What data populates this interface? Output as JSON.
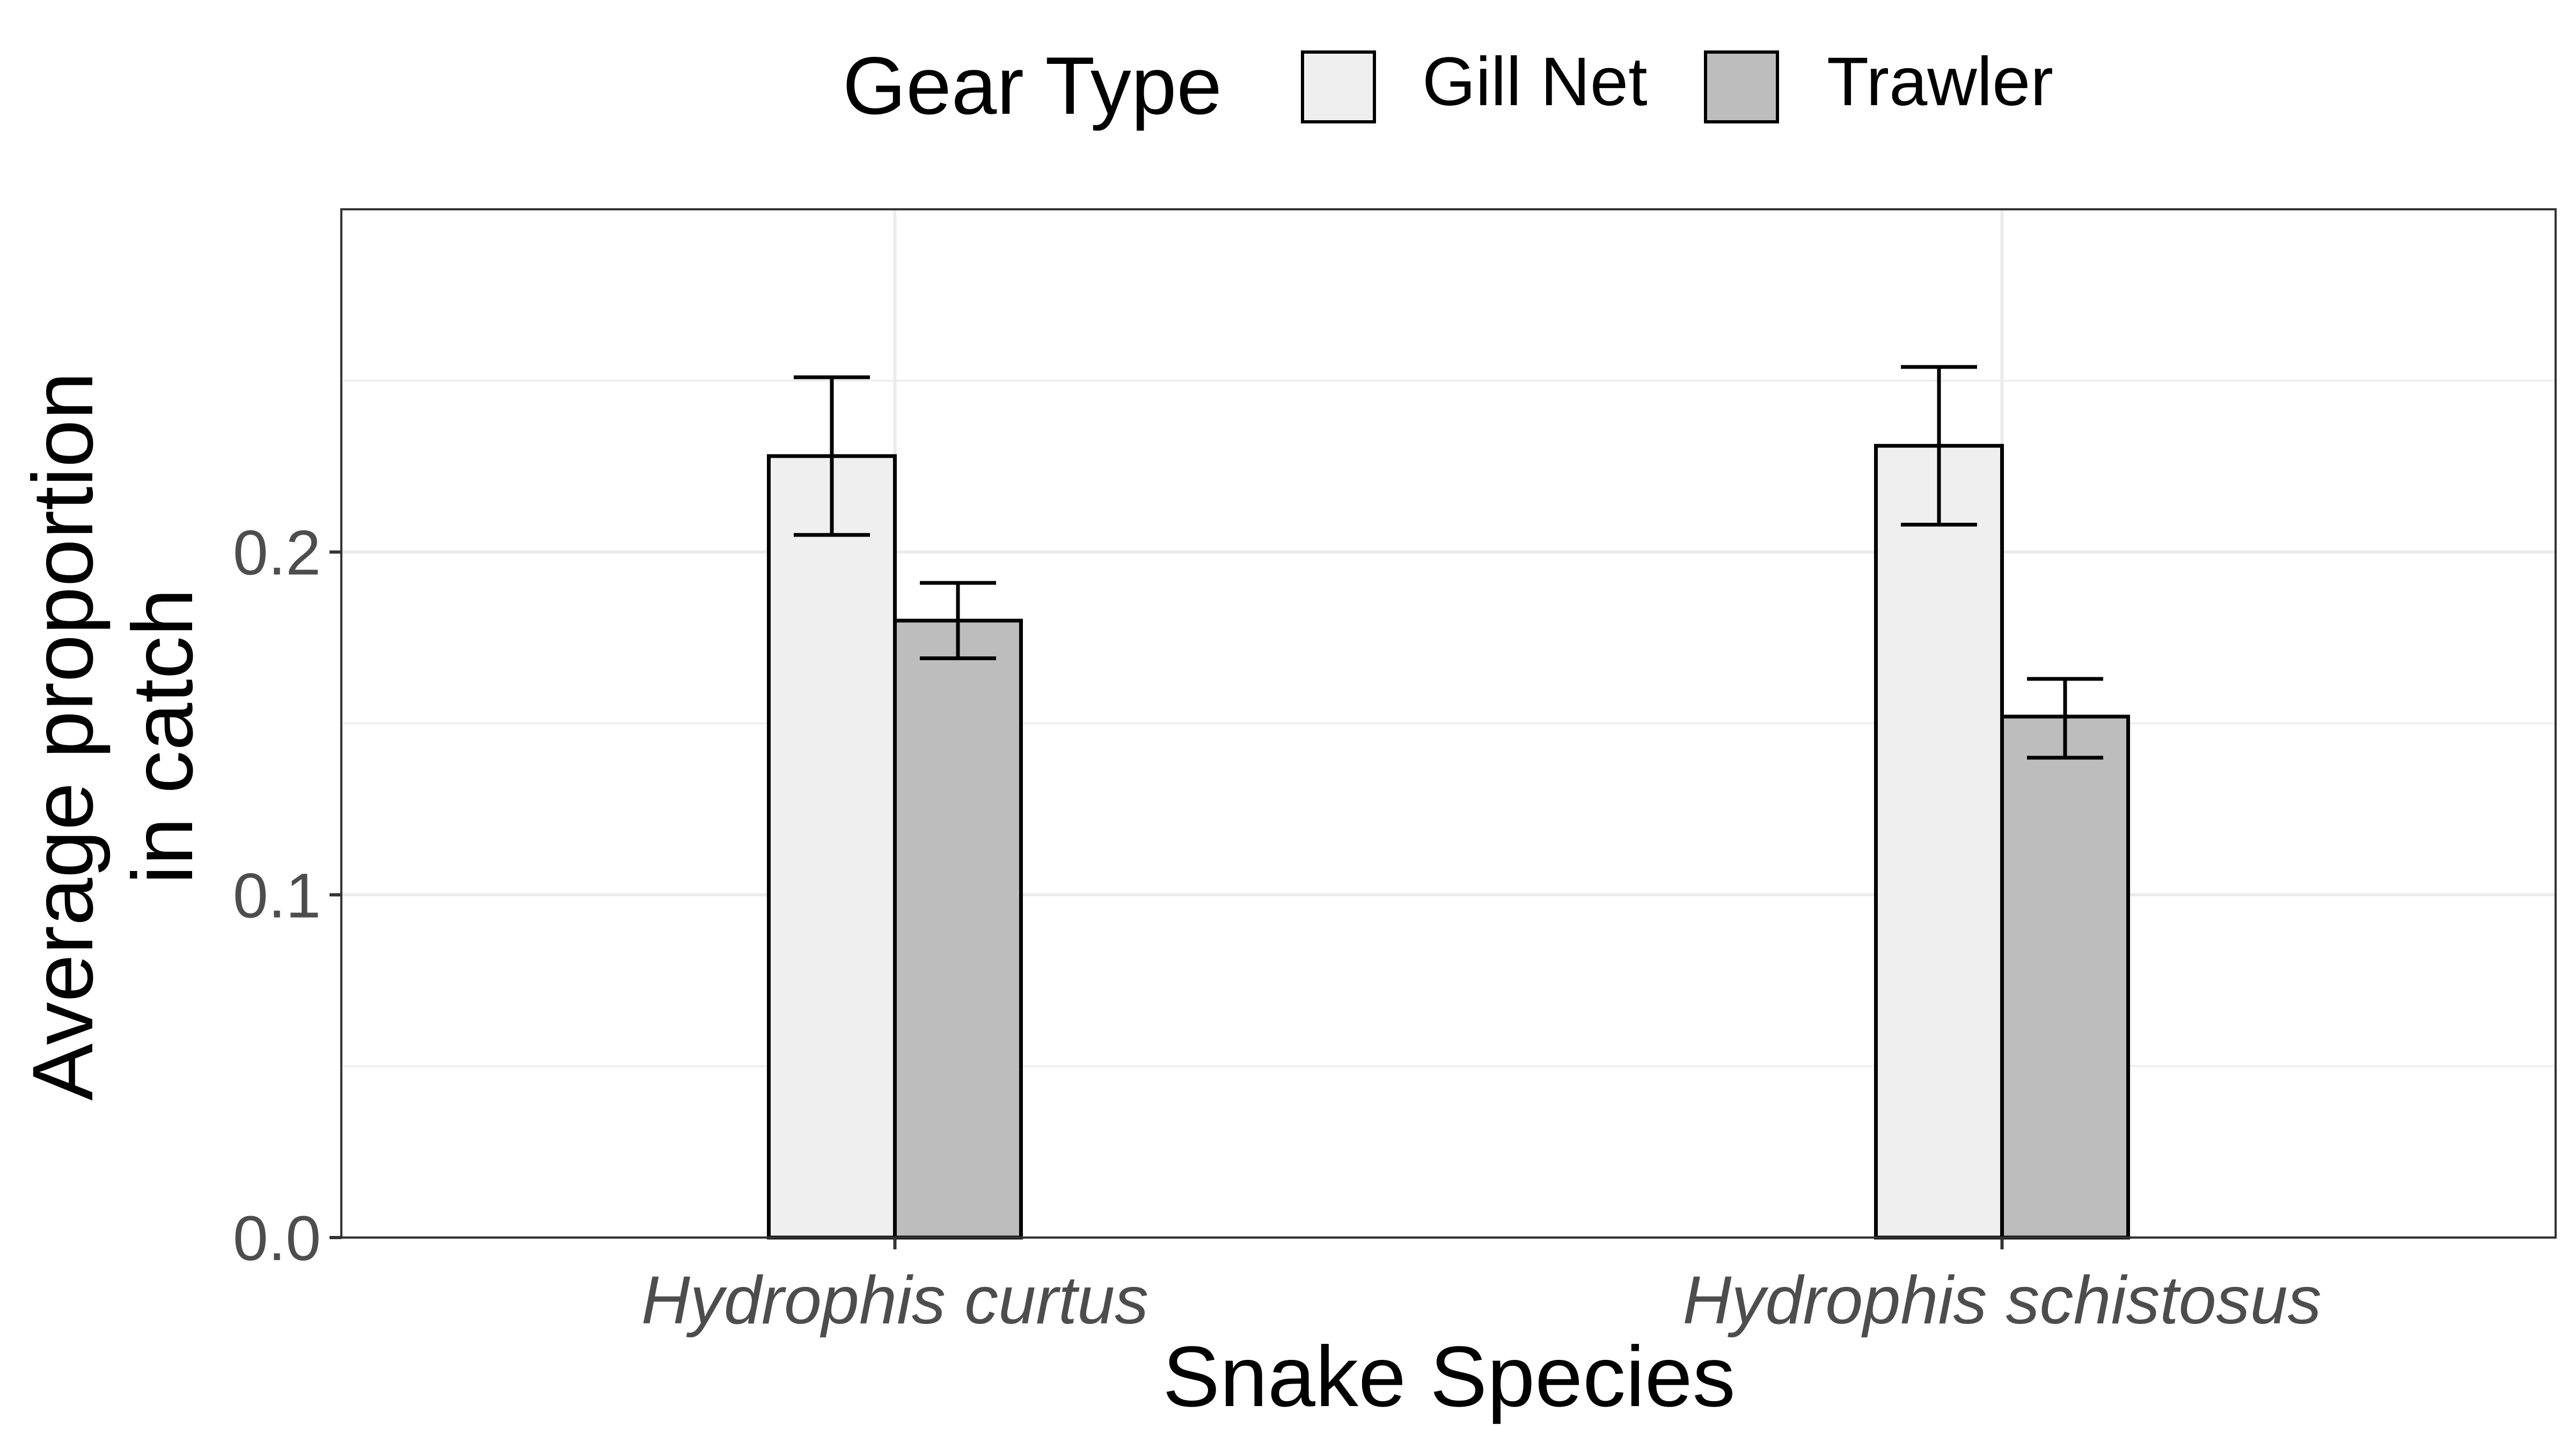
{
  "chart_data": {
    "type": "bar",
    "title": "",
    "xlabel": "Snake Species",
    "ylabel_lines": [
      "Average proportion",
      "in catch"
    ],
    "categories": [
      "Hydrophis curtus",
      "Hydrophis schistosus"
    ],
    "series": [
      {
        "name": "Gill Net",
        "color": "#efefef",
        "values": [
          0.228,
          0.231
        ],
        "error_low": [
          0.205,
          0.208
        ],
        "error_high": [
          0.251,
          0.254
        ]
      },
      {
        "name": "Trawler",
        "color": "#bdbdbd",
        "values": [
          0.18,
          0.152
        ],
        "error_low": [
          0.169,
          0.14
        ],
        "error_high": [
          0.191,
          0.163
        ]
      }
    ],
    "ylim": [
      0,
      0.3
    ],
    "yticks": [
      0.0,
      0.1,
      0.2
    ],
    "ytick_labels": [
      "0.0",
      "0.1",
      "0.2"
    ],
    "grid": true,
    "legend": {
      "title": "Gear Type",
      "placement": "top",
      "entries": [
        "Gill Net",
        "Trawler"
      ]
    }
  }
}
